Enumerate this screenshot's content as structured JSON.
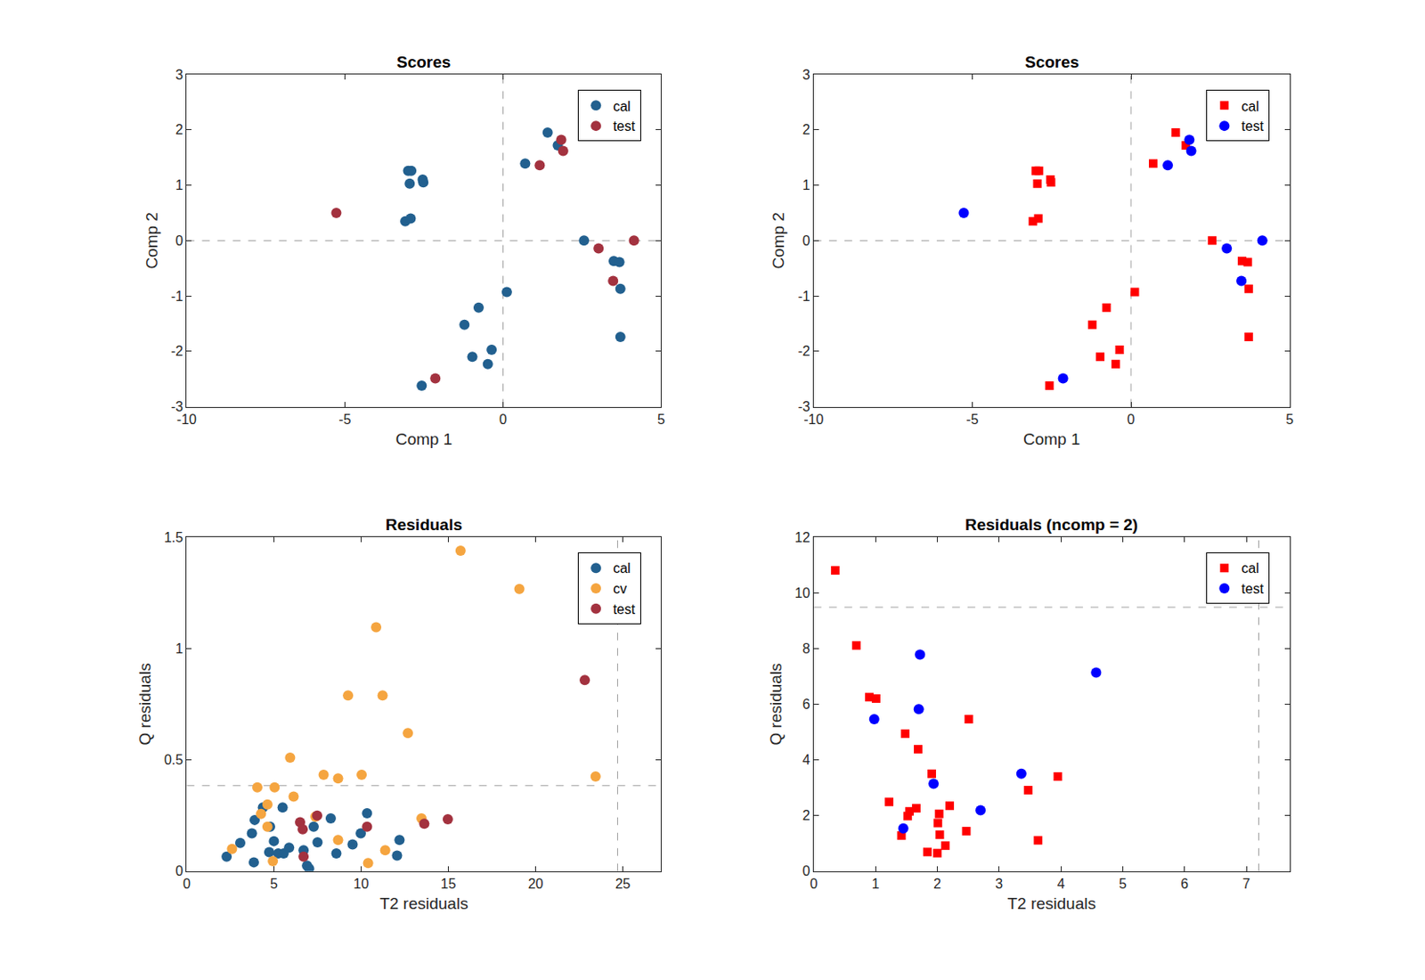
{
  "chart_data": [
    {
      "type": "scatter",
      "title": "Scores",
      "x_label": "Comp 1",
      "y_label": "Comp 2",
      "xlim": [
        -10,
        5
      ],
      "ylim": [
        -3,
        3
      ],
      "xticks": [
        -10,
        -5,
        0,
        5
      ],
      "yticks": [
        -3,
        -2,
        -1,
        0,
        1,
        2,
        3
      ],
      "grid": false,
      "legend": "upper right",
      "reference_lines": {
        "x": 0,
        "y": 0
      },
      "series": [
        {
          "name": "cal",
          "color": "#22608f",
          "marker": "circle",
          "x": [
            1.41,
            -3.0,
            -2.9,
            -2.95,
            -2.54,
            -2.52,
            -3.09,
            -2.92,
            0.7,
            1.73,
            2.56,
            3.5,
            3.68,
            3.71,
            3.71,
            0.12,
            -0.77,
            -1.22,
            -0.97,
            -0.36,
            -0.48,
            -2.57
          ],
          "y": [
            1.95,
            1.26,
            1.26,
            1.03,
            1.1,
            1.05,
            0.35,
            0.4,
            1.39,
            1.72,
            0.0,
            -0.37,
            -0.39,
            -0.87,
            -1.74,
            -0.93,
            -1.21,
            -1.52,
            -2.1,
            -1.97,
            -2.23,
            -2.62
          ]
        },
        {
          "name": "test",
          "color": "#a3323f",
          "marker": "circle",
          "x": [
            -5.27,
            1.16,
            1.84,
            1.9,
            3.02,
            3.48,
            4.14,
            -2.14
          ],
          "y": [
            0.5,
            1.36,
            1.82,
            1.62,
            -0.14,
            -0.73,
            0.0,
            -2.49
          ]
        }
      ]
    },
    {
      "type": "scatter",
      "title": "Scores",
      "x_label": "Comp 1",
      "y_label": "Comp 2",
      "xlim": [
        -10,
        5
      ],
      "ylim": [
        -3,
        3
      ],
      "xticks": [
        -10,
        -5,
        0,
        5
      ],
      "yticks": [
        -3,
        -2,
        -1,
        0,
        1,
        2,
        3
      ],
      "grid": false,
      "legend": "upper right",
      "reference_lines": {
        "x": 0,
        "y": 0
      },
      "series": [
        {
          "name": "cal",
          "color": "#ff0000",
          "marker": "square",
          "x": [
            1.41,
            -3.0,
            -2.9,
            -2.95,
            -2.54,
            -2.52,
            -3.09,
            -2.92,
            0.7,
            1.73,
            2.56,
            3.5,
            3.68,
            3.71,
            3.71,
            0.12,
            -0.77,
            -1.22,
            -0.97,
            -0.36,
            -0.48,
            -2.57
          ],
          "y": [
            1.95,
            1.26,
            1.26,
            1.03,
            1.1,
            1.05,
            0.35,
            0.4,
            1.39,
            1.72,
            0.0,
            -0.37,
            -0.39,
            -0.87,
            -1.74,
            -0.93,
            -1.21,
            -1.52,
            -2.1,
            -1.97,
            -2.23,
            -2.62
          ]
        },
        {
          "name": "test",
          "color": "#0000ff",
          "marker": "circle",
          "x": [
            -5.27,
            1.16,
            1.84,
            1.9,
            3.02,
            3.48,
            4.14,
            -2.14
          ],
          "y": [
            0.5,
            1.36,
            1.82,
            1.62,
            -0.14,
            -0.73,
            0.0,
            -2.49
          ]
        }
      ]
    },
    {
      "type": "scatter",
      "title": "Residuals",
      "x_label": "T2 residuals",
      "y_label": "Q residuals",
      "xlim": [
        0,
        27.2
      ],
      "ylim": [
        0,
        1.5
      ],
      "xticks": [
        0,
        5,
        10,
        15,
        20,
        25
      ],
      "yticks": [
        0,
        0.5,
        1,
        1.5
      ],
      "grid": false,
      "legend": "upper right",
      "reference_lines": {
        "x": 24.7,
        "y": 0.384
      },
      "series": [
        {
          "name": "cal",
          "color": "#22608f",
          "marker": "circle",
          "x": [
            2.29,
            3.07,
            3.74,
            3.9,
            3.85,
            4.37,
            4.78,
            4.73,
            5.0,
            5.25,
            5.5,
            5.56,
            5.87,
            6.7,
            6.9,
            7.02,
            7.28,
            7.5,
            8.26,
            8.58,
            9.51,
            9.98,
            10.34,
            12.2,
            12.06
          ],
          "y": [
            0.065,
            0.127,
            0.17,
            0.23,
            0.04,
            0.286,
            0.2,
            0.086,
            0.135,
            0.08,
            0.286,
            0.08,
            0.106,
            0.094,
            0.025,
            0.012,
            0.2,
            0.13,
            0.237,
            0.08,
            0.12,
            0.17,
            0.26,
            0.14,
            0.07
          ]
        },
        {
          "name": "cv",
          "color": "#f5a540",
          "marker": "circle",
          "x": [
            2.6,
            4.05,
            4.26,
            4.63,
            4.63,
            4.94,
            5.04,
            5.93,
            6.13,
            7.38,
            7.85,
            8.68,
            8.68,
            9.25,
            10.03,
            10.4,
            10.86,
            11.23,
            11.38,
            12.68,
            13.46,
            15.7,
            19.07,
            23.44
          ],
          "y": [
            0.1,
            0.376,
            0.257,
            0.3,
            0.2,
            0.045,
            0.376,
            0.51,
            0.335,
            0.245,
            0.433,
            0.417,
            0.14,
            0.789,
            0.433,
            0.037,
            1.095,
            0.789,
            0.094,
            0.62,
            0.237,
            1.439,
            1.267,
            0.425
          ]
        },
        {
          "name": "test",
          "color": "#a3323f",
          "marker": "circle",
          "x": [
            6.5,
            6.65,
            6.7,
            7.48,
            10.34,
            13.62,
            14.97,
            22.82
          ],
          "y": [
            0.22,
            0.188,
            0.065,
            0.25,
            0.2,
            0.213,
            0.233,
            0.858
          ]
        }
      ]
    },
    {
      "type": "scatter",
      "title": "Residuals (ncomp = 2)",
      "x_label": "T2 residuals",
      "y_label": "Q residuals",
      "xlim": [
        0,
        7.7
      ],
      "ylim": [
        0,
        12
      ],
      "xticks": [
        0,
        1,
        2,
        3,
        4,
        5,
        6,
        7
      ],
      "yticks": [
        0,
        2,
        4,
        6,
        8,
        10,
        12
      ],
      "grid": false,
      "legend": "upper right",
      "reference_lines": {
        "x": 7.2,
        "y": 9.48
      },
      "series": [
        {
          "name": "cal",
          "color": "#ff0000",
          "marker": "square",
          "x": [
            0.35,
            0.69,
            0.9,
            1.01,
            1.22,
            1.48,
            1.42,
            1.55,
            1.52,
            1.66,
            1.69,
            1.84,
            1.91,
            2.0,
            2.03,
            2.01,
            2.04,
            2.13,
            2.2,
            2.47,
            2.51,
            3.47,
            3.63,
            3.95
          ],
          "y": [
            10.8,
            8.11,
            6.25,
            6.2,
            2.49,
            4.94,
            1.28,
            2.15,
            1.98,
            2.26,
            4.38,
            0.69,
            3.5,
            0.65,
            2.06,
            1.73,
            1.31,
            0.92,
            2.35,
            1.44,
            5.46,
            2.91,
            1.11,
            3.4
          ]
        },
        {
          "name": "test",
          "color": "#0000ff",
          "marker": "circle",
          "x": [
            0.98,
            1.72,
            1.7,
            1.45,
            1.94,
            2.7,
            3.36,
            4.57
          ],
          "y": [
            5.46,
            7.78,
            5.82,
            1.54,
            3.14,
            2.19,
            3.5,
            7.13
          ]
        }
      ]
    }
  ]
}
